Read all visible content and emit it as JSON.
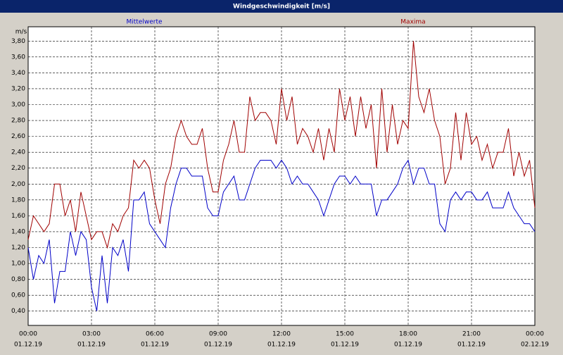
{
  "chart_data": {
    "type": "line",
    "title": "Windgeschwindigkeit [m/s]",
    "y_label": "m/s",
    "x": [
      0,
      0.25,
      0.5,
      0.75,
      1,
      1.25,
      1.5,
      1.75,
      2,
      2.25,
      2.5,
      2.75,
      3,
      3.25,
      3.5,
      3.75,
      4,
      4.25,
      4.5,
      4.75,
      5,
      5.25,
      5.5,
      5.75,
      6,
      6.25,
      6.5,
      6.75,
      7,
      7.25,
      7.5,
      7.75,
      8,
      8.25,
      8.5,
      8.75,
      9,
      9.25,
      9.5,
      9.75,
      10,
      10.25,
      10.5,
      10.75,
      11,
      11.25,
      11.5,
      11.75,
      12,
      12.25,
      12.5,
      12.75,
      13,
      13.25,
      13.5,
      13.75,
      14,
      14.25,
      14.5,
      14.75,
      15,
      15.25,
      15.5,
      15.75,
      16,
      16.25,
      16.5,
      16.75,
      17,
      17.25,
      17.5,
      17.75,
      18,
      18.25,
      18.5,
      18.75,
      19,
      19.25,
      19.5,
      19.75,
      20,
      20.25,
      20.5,
      20.75,
      21,
      21.25,
      21.5,
      21.75,
      22,
      22.25,
      22.5,
      22.75,
      23,
      23.25,
      23.5,
      23.75,
      24
    ],
    "series": [
      {
        "name": "Mittelwerte",
        "color": "#0000c8",
        "values": [
          1.2,
          0.8,
          1.1,
          1.0,
          1.3,
          0.5,
          0.9,
          0.9,
          1.4,
          1.1,
          1.4,
          1.3,
          0.7,
          0.4,
          1.1,
          0.5,
          1.2,
          1.1,
          1.3,
          0.9,
          1.8,
          1.8,
          1.9,
          1.5,
          1.4,
          1.3,
          1.2,
          1.7,
          2.0,
          2.2,
          2.2,
          2.1,
          2.1,
          2.1,
          1.7,
          1.6,
          1.6,
          1.9,
          2.0,
          2.1,
          1.8,
          1.8,
          2.0,
          2.2,
          2.3,
          2.3,
          2.3,
          2.2,
          2.3,
          2.2,
          2.0,
          2.1,
          2.0,
          2.0,
          1.9,
          1.8,
          1.6,
          1.8,
          2.0,
          2.1,
          2.1,
          2.0,
          2.1,
          2.0,
          2.0,
          2.0,
          1.6,
          1.8,
          1.8,
          1.9,
          2.0,
          2.2,
          2.3,
          2.0,
          2.2,
          2.2,
          2.0,
          2.0,
          1.5,
          1.4,
          1.8,
          1.9,
          1.8,
          1.9,
          1.9,
          1.8,
          1.8,
          1.9,
          1.7,
          1.7,
          1.7,
          1.9,
          1.7,
          1.6,
          1.5,
          1.5,
          1.4
        ]
      },
      {
        "name": "Maxima",
        "color": "#a00000",
        "values": [
          1.3,
          1.6,
          1.5,
          1.4,
          1.5,
          2.0,
          2.0,
          1.6,
          1.8,
          1.4,
          1.9,
          1.6,
          1.3,
          1.4,
          1.4,
          1.2,
          1.5,
          1.4,
          1.6,
          1.7,
          2.3,
          2.2,
          2.3,
          2.2,
          1.8,
          1.5,
          2.0,
          2.2,
          2.6,
          2.8,
          2.6,
          2.5,
          2.5,
          2.7,
          2.2,
          1.9,
          1.9,
          2.3,
          2.5,
          2.8,
          2.4,
          2.4,
          3.1,
          2.8,
          2.9,
          2.9,
          2.8,
          2.5,
          3.2,
          2.8,
          3.1,
          2.5,
          2.7,
          2.6,
          2.4,
          2.7,
          2.3,
          2.7,
          2.4,
          3.2,
          2.8,
          3.1,
          2.6,
          3.1,
          2.7,
          3.0,
          2.2,
          3.2,
          2.4,
          3.0,
          2.5,
          2.8,
          2.7,
          3.8,
          3.1,
          2.9,
          3.2,
          2.8,
          2.6,
          2.0,
          2.2,
          2.9,
          2.3,
          2.9,
          2.5,
          2.6,
          2.3,
          2.5,
          2.2,
          2.4,
          2.4,
          2.7,
          2.1,
          2.4,
          2.1,
          2.3,
          1.7
        ]
      }
    ],
    "xlim": [
      0,
      24
    ],
    "xticks": [
      {
        "value": 0,
        "label": "00:00"
      },
      {
        "value": 3,
        "label": "03:00"
      },
      {
        "value": 6,
        "label": "06:00"
      },
      {
        "value": 9,
        "label": "09:00"
      },
      {
        "value": 12,
        "label": "12:00"
      },
      {
        "value": 15,
        "label": "15:00"
      },
      {
        "value": 18,
        "label": "18:00"
      },
      {
        "value": 21,
        "label": "21:00"
      },
      {
        "value": 24,
        "label": "00:00"
      }
    ],
    "xtick_dates": [
      "01.12.19",
      "01.12.19",
      "01.12.19",
      "01.12.19",
      "01.12.19",
      "01.12.19",
      "01.12.19",
      "01.12.19",
      "02.12.19"
    ],
    "ylim": [
      0.22,
      3.98
    ],
    "yticks": [
      {
        "value": 0.4,
        "label": "0,40"
      },
      {
        "value": 0.6,
        "label": "0,60"
      },
      {
        "value": 0.8,
        "label": "0,80"
      },
      {
        "value": 1.0,
        "label": "1,00"
      },
      {
        "value": 1.2,
        "label": "1,20"
      },
      {
        "value": 1.4,
        "label": "1,40"
      },
      {
        "value": 1.6,
        "label": "1,60"
      },
      {
        "value": 1.8,
        "label": "1,80"
      },
      {
        "value": 2.0,
        "label": "2,00"
      },
      {
        "value": 2.2,
        "label": "2,20"
      },
      {
        "value": 2.4,
        "label": "2,40"
      },
      {
        "value": 2.6,
        "label": "2,60"
      },
      {
        "value": 2.8,
        "label": "2,80"
      },
      {
        "value": 3.0,
        "label": "3,00"
      },
      {
        "value": 3.2,
        "label": "3,20"
      },
      {
        "value": 3.4,
        "label": "3,40"
      },
      {
        "value": 3.6,
        "label": "3,60"
      },
      {
        "value": 3.8,
        "label": "3,80"
      }
    ],
    "grid": true
  }
}
